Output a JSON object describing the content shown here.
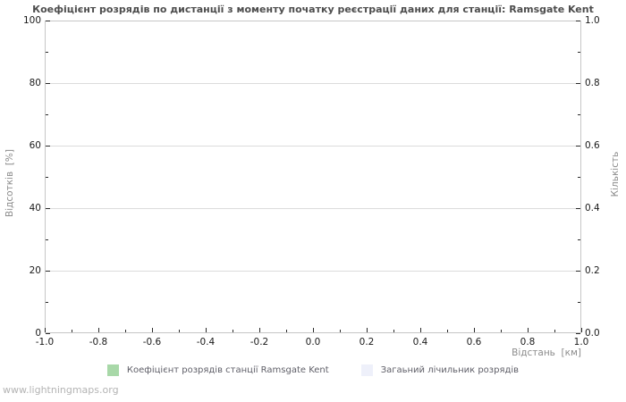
{
  "watermark": "www.lightningmaps.org",
  "chart_data": {
    "type": "bar",
    "title": "Коефіцієнт розрядів по дистанції з моменту початку реєстрації даних для станції: Ramsgate Kent",
    "x": [],
    "series": [
      {
        "name": "Коефіцієнт розрядів станції Ramsgate Kent",
        "color": "#a8d8a8",
        "axis": "left",
        "values": []
      },
      {
        "name": "Загаьний лічильник розрядів",
        "color": "#eef0fa",
        "axis": "right",
        "values": []
      }
    ],
    "axes": {
      "left": {
        "label": "Відсотків  [%]",
        "min": 0,
        "max": 100,
        "major_ticks": [
          0,
          20,
          40,
          60,
          80,
          100
        ],
        "minor_ticks": [
          10,
          30,
          50,
          70,
          90
        ],
        "tick_labels": [
          "0",
          "20",
          "40",
          "60",
          "80",
          "100"
        ]
      },
      "right": {
        "label": "Кількість",
        "min": 0.0,
        "max": 1.0,
        "major_ticks": [
          0,
          0.2,
          0.4,
          0.6,
          0.8,
          1
        ],
        "minor_ticks": [
          0.1,
          0.3,
          0.5,
          0.7,
          0.9
        ],
        "tick_labels": [
          "0.0",
          "0.2",
          "0.4",
          "0.6",
          "0.8",
          "1.0"
        ]
      },
      "x": {
        "label": "Відстань  [км]",
        "min": -1.0,
        "max": 1.0,
        "major_ticks": [
          -1,
          -0.8,
          -0.6,
          -0.4,
          -0.2,
          0,
          0.2,
          0.4,
          0.6,
          0.8,
          1
        ],
        "minor_ticks": [
          -0.9,
          -0.7,
          -0.5,
          -0.3,
          -0.1,
          0.1,
          0.3,
          0.5,
          0.7,
          0.9
        ],
        "tick_labels": [
          "-1.0",
          "-0.8",
          "-0.6",
          "-0.4",
          "-0.2",
          "0.0",
          "0.2",
          "0.4",
          "0.6",
          "0.8",
          "1.0"
        ]
      }
    },
    "grid": "horizontal-major",
    "legend_position": "bottom",
    "colors": {
      "gridline": "#dcdcdc",
      "frame": "#c6c6c6"
    }
  }
}
